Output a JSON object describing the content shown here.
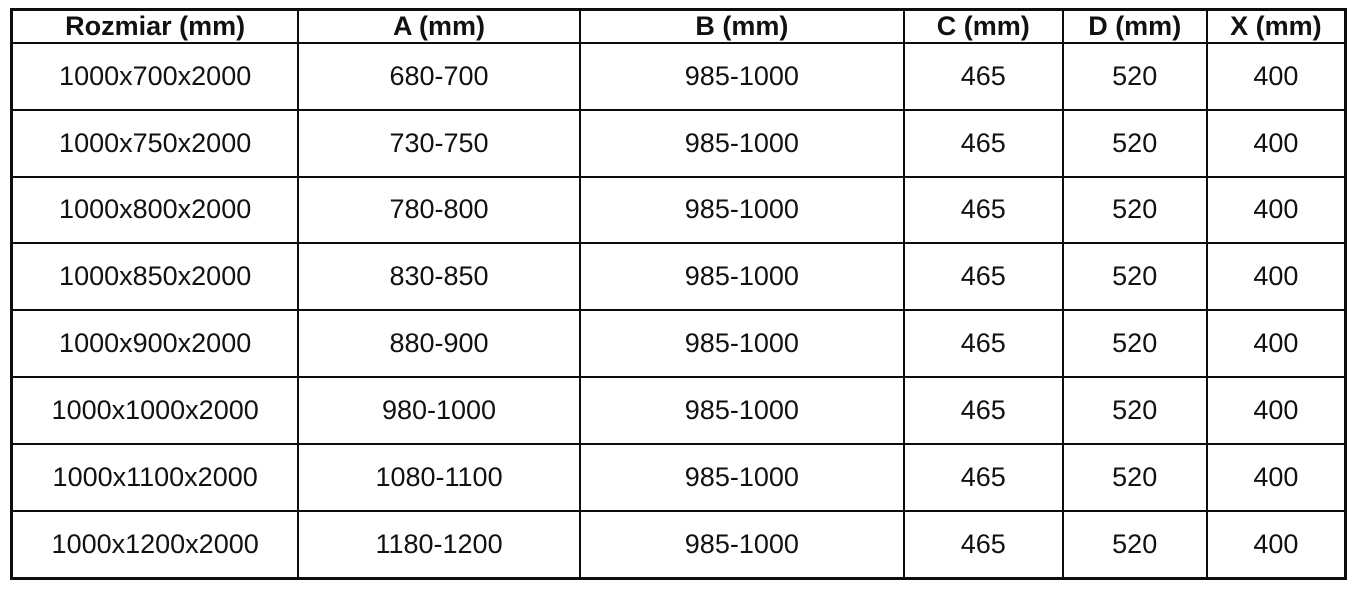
{
  "table": {
    "columns": [
      {
        "key": "rozmiar",
        "label": "Rozmiar (mm)"
      },
      {
        "key": "a",
        "label": "A (mm)"
      },
      {
        "key": "b",
        "label": "B (mm)"
      },
      {
        "key": "c",
        "label": "C (mm)"
      },
      {
        "key": "d",
        "label": "D (mm)"
      },
      {
        "key": "x",
        "label": "X (mm)"
      }
    ],
    "rows": [
      [
        "1000x700x2000",
        "680-700",
        "985-1000",
        "465",
        "520",
        "400"
      ],
      [
        "1000x750x2000",
        "730-750",
        "985-1000",
        "465",
        "520",
        "400"
      ],
      [
        "1000x800x2000",
        "780-800",
        "985-1000",
        "465",
        "520",
        "400"
      ],
      [
        "1000x850x2000",
        "830-850",
        "985-1000",
        "465",
        "520",
        "400"
      ],
      [
        "1000x900x2000",
        "880-900",
        "985-1000",
        "465",
        "520",
        "400"
      ],
      [
        "1000x1000x2000",
        "980-1000",
        "985-1000",
        "465",
        "520",
        "400"
      ],
      [
        "1000x1100x2000",
        "1080-1100",
        "985-1000",
        "465",
        "520",
        "400"
      ],
      [
        "1000x1200x2000",
        "1180-1200",
        "985-1000",
        "465",
        "520",
        "400"
      ]
    ]
  },
  "colors": {
    "border": "#0d0d0d",
    "text": "#111111",
    "background": "#ffffff"
  }
}
